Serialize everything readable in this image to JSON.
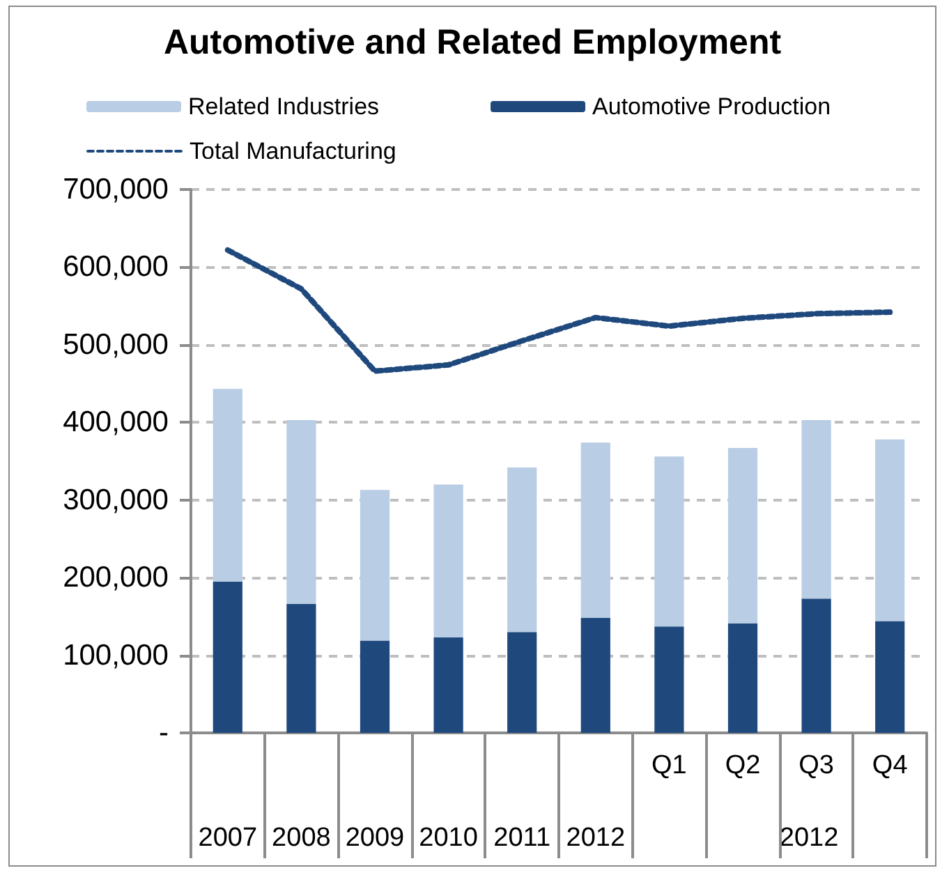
{
  "chart_data": {
    "type": "bar",
    "title": "Automotive and Related Employment",
    "stacked": true,
    "categories": [
      "2007",
      "2008",
      "2009",
      "2010",
      "2011",
      "2012",
      "Q1",
      "Q2",
      "Q3",
      "Q4"
    ],
    "annotations": [
      "2012"
    ],
    "series": [
      {
        "name": "Automotive Production",
        "color": "#1f497d",
        "values": [
          195000,
          166000,
          119000,
          123000,
          130000,
          148000,
          137000,
          141000,
          173000,
          144000
        ]
      },
      {
        "name": "Related Industries",
        "color": "#b9cde5",
        "values": [
          248000,
          237000,
          194000,
          197000,
          212000,
          226000,
          219000,
          226000,
          230000,
          234000
        ]
      },
      {
        "name": "Total Manufacturing",
        "type": "line",
        "color": "#1f497d",
        "line_style": "dashed",
        "marker": "none",
        "values": [
          622000,
          572000,
          466000,
          474000,
          505000,
          535000,
          524000,
          534000,
          540000,
          542000
        ]
      }
    ],
    "ylim": [
      0,
      700000
    ],
    "yticks": [
      {
        "value": 0,
        "label": "-"
      },
      {
        "value": 100000,
        "label": "100,000"
      },
      {
        "value": 200000,
        "label": "200,000"
      },
      {
        "value": 300000,
        "label": "300,000"
      },
      {
        "value": 400000,
        "label": "400,000"
      },
      {
        "value": 500000,
        "label": "500,000"
      },
      {
        "value": 600000,
        "label": "600,000"
      },
      {
        "value": 700000,
        "label": "700,000"
      }
    ],
    "grid": "y",
    "legend": "top"
  }
}
